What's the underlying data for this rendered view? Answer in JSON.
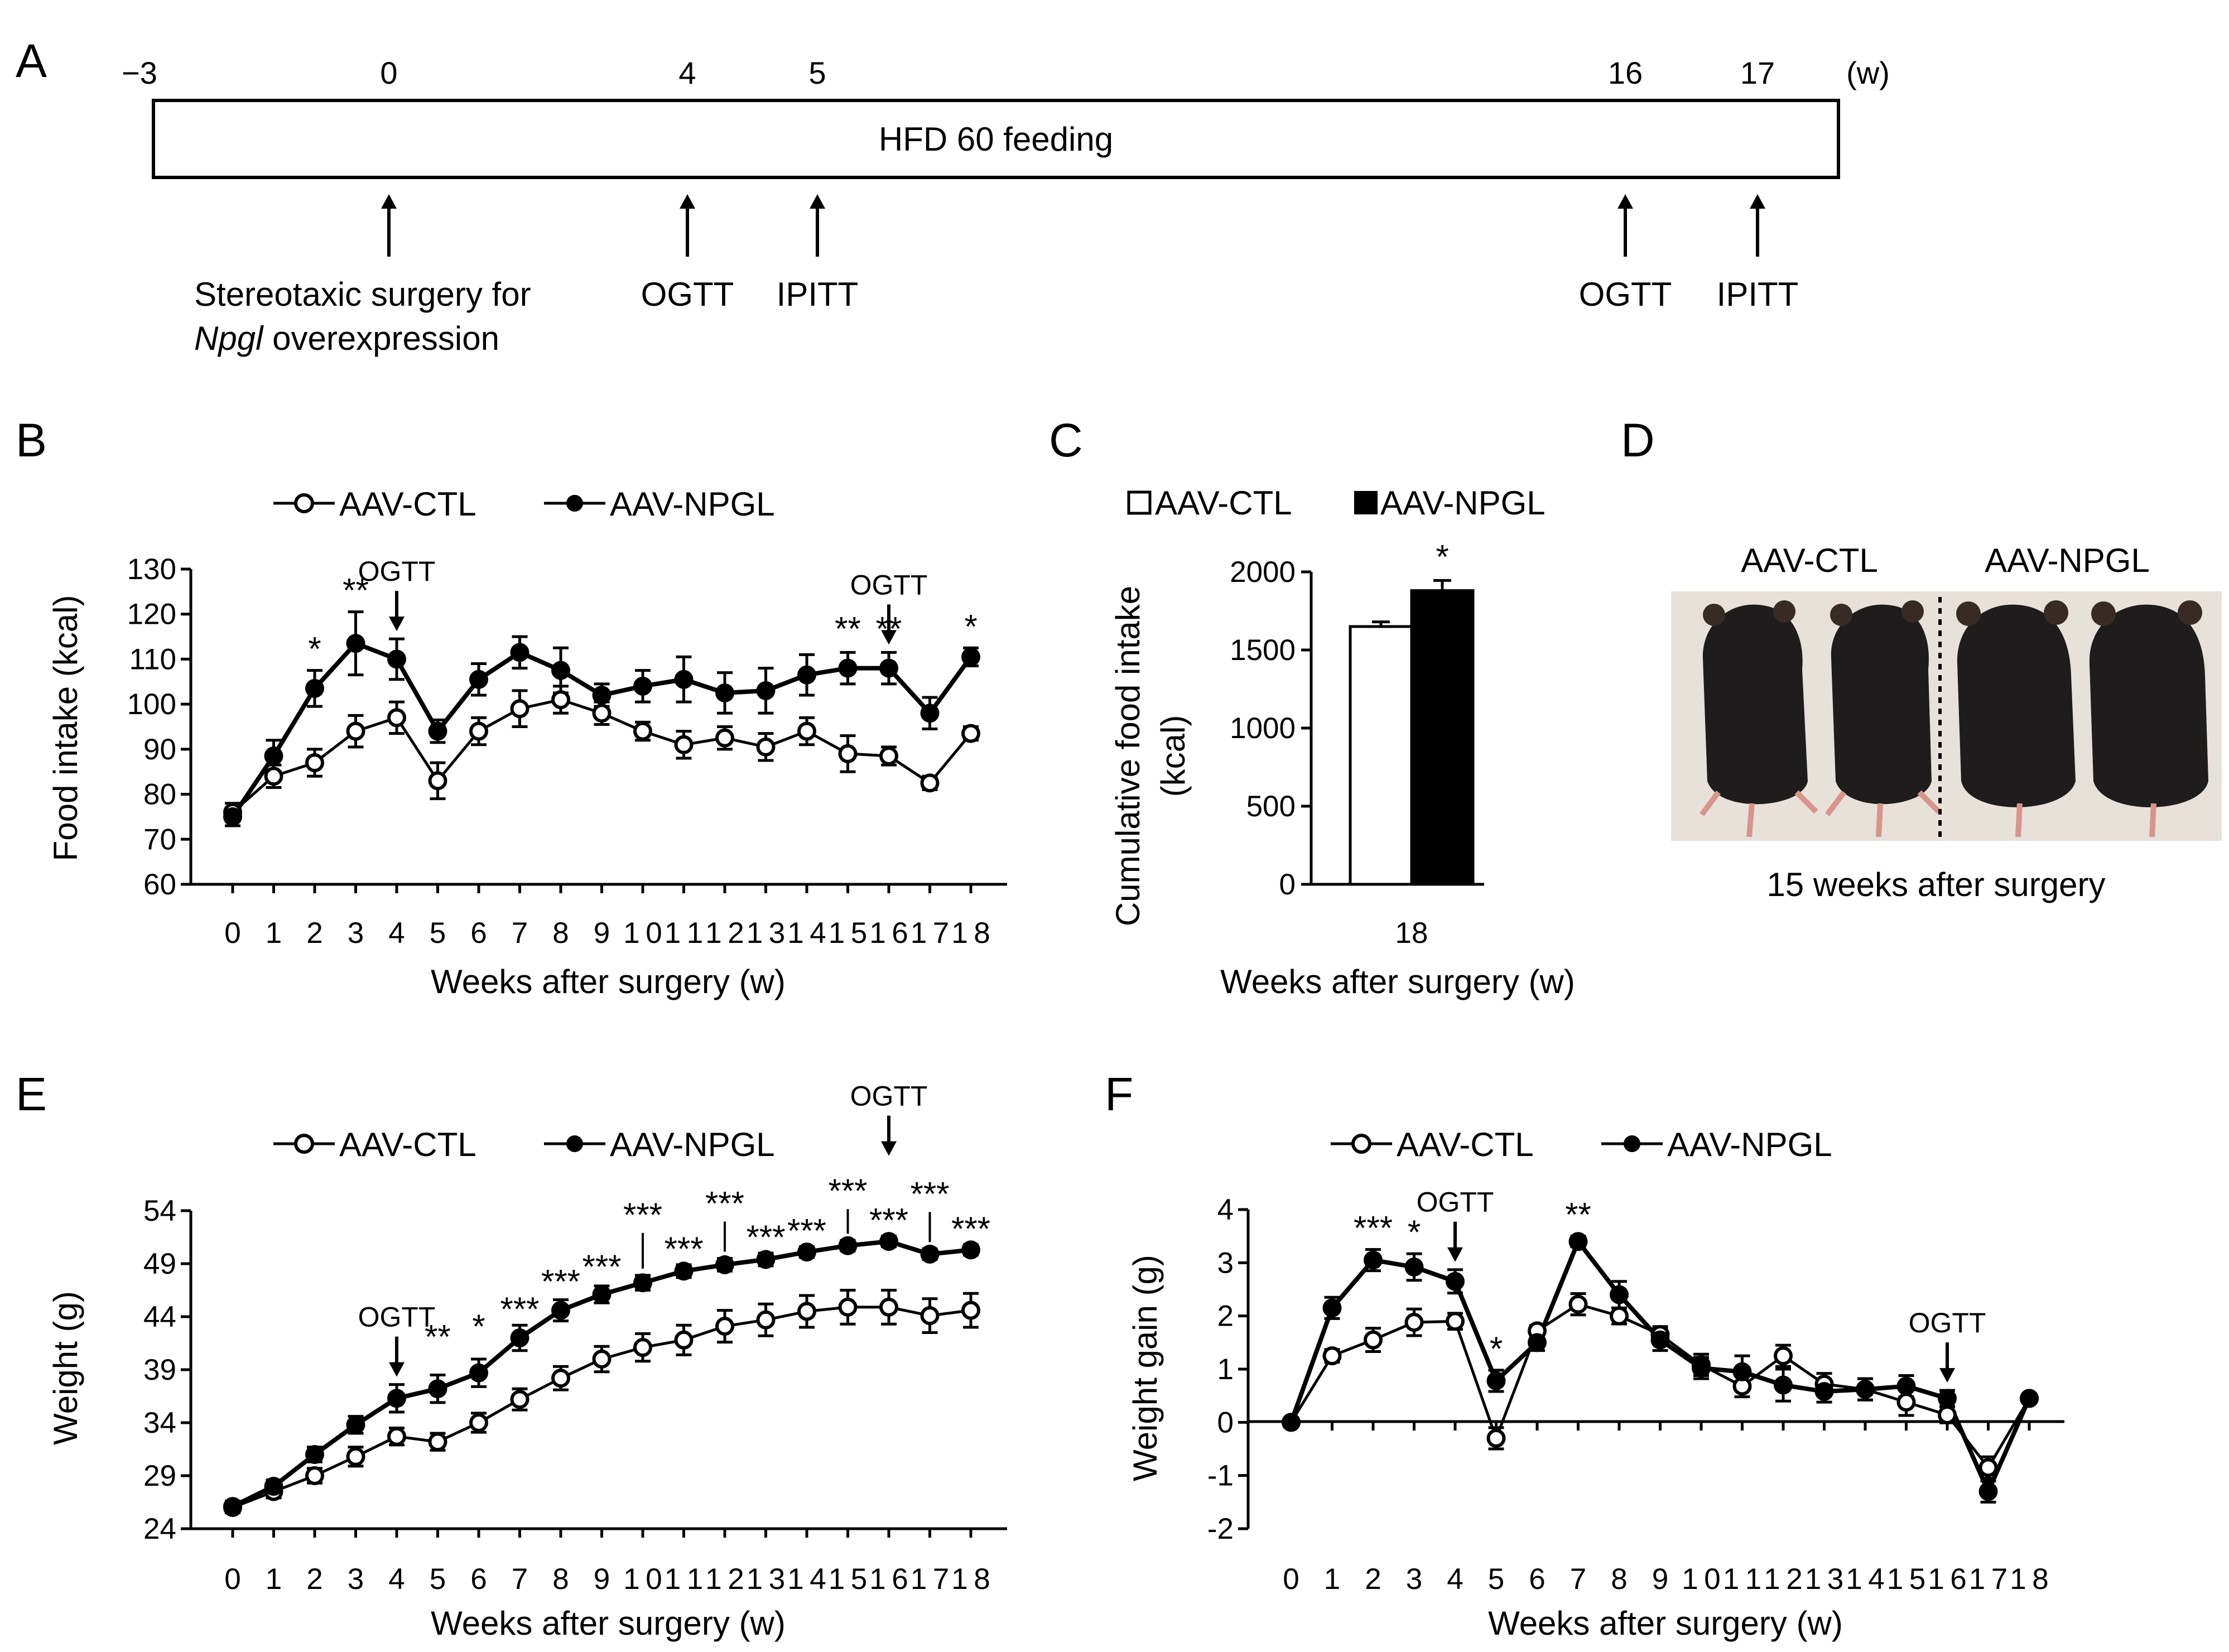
{
  "panel_labels": [
    "A",
    "B",
    "C",
    "D",
    "E",
    "F"
  ],
  "timeline": {
    "ticks": [
      "−3",
      "0",
      "4",
      "5",
      "16",
      "17"
    ],
    "unit": "(w)",
    "bar_label": "HFD 60 feeding",
    "events": [
      {
        "label": "Stereotaxic surgery for",
        "label2": "Npgl",
        "label3": " overexpression"
      },
      {
        "label": "OGTT"
      },
      {
        "label": "IPITT"
      },
      {
        "label": "OGTT"
      },
      {
        "label": "IPITT"
      }
    ]
  },
  "colors": {
    "ctl_fill": "#ffffff",
    "npgl_fill": "#000000",
    "line": "#000000",
    "text": "#000000"
  },
  "chart_data": [
    {
      "id": "B",
      "type": "line",
      "title": "",
      "legend": [
        "AAV-CTL",
        "AAV-NPGL"
      ],
      "xlabel": "Weeks after surgery (w)",
      "ylabel": "Food intake (kcal)",
      "ylim": [
        60,
        130
      ],
      "yticks": [
        60,
        70,
        80,
        90,
        100,
        110,
        120,
        130
      ],
      "categories": [
        "0",
        "1",
        "2",
        "3",
        "4",
        "5",
        "6",
        "7",
        "8",
        "9",
        "10",
        "11",
        "12",
        "13",
        "14",
        "15",
        "16",
        "17",
        "18"
      ],
      "series": [
        {
          "name": "AAV-CTL",
          "values": [
            76,
            84,
            87,
            94,
            97,
            83,
            94,
            99,
            101,
            98,
            94,
            91,
            92.5,
            90.5,
            94,
            89,
            88.5,
            82.5,
            93.5
          ],
          "errors": [
            2,
            2.5,
            3,
            3.5,
            3.5,
            4,
            3,
            4,
            3,
            2.5,
            2,
            3,
            2.5,
            3,
            3,
            4,
            2,
            1.5,
            1.5
          ]
        },
        {
          "name": "AAV-NPGL",
          "values": [
            75,
            88.5,
            103.5,
            113.5,
            110,
            94,
            105.5,
            111.5,
            107.5,
            102,
            104,
            105.5,
            102.5,
            103,
            106.5,
            108,
            108,
            98,
            110.5
          ],
          "errors": [
            2,
            3.5,
            4,
            7,
            4.5,
            2.5,
            3.5,
            3.5,
            5,
            2.5,
            3.5,
            5,
            4.5,
            5,
            4.5,
            3.5,
            3.5,
            3.5,
            2
          ]
        }
      ],
      "significance": [
        {
          "x": "2",
          "text": "*"
        },
        {
          "x": "3",
          "text": "**"
        },
        {
          "x": "15",
          "text": "**"
        },
        {
          "x": "16",
          "text": "**"
        },
        {
          "x": "18",
          "text": "*"
        }
      ],
      "annotations": [
        {
          "x": "4",
          "text": "OGTT"
        },
        {
          "x": "16",
          "text": "OGTT"
        }
      ]
    },
    {
      "id": "C",
      "type": "bar",
      "title": "",
      "legend": [
        "AAV-CTL",
        "AAV-NPGL"
      ],
      "categories": [
        "18"
      ],
      "xlabel": "Weeks after surgery (w)",
      "ylabel_line1": "Cumulative food intake",
      "ylabel_line2": "(kcal)",
      "ylim": [
        0,
        2000
      ],
      "yticks": [
        0,
        500,
        1000,
        1500,
        2000
      ],
      "series": [
        {
          "name": "AAV-CTL",
          "values": [
            1650
          ],
          "errors": [
            30
          ]
        },
        {
          "name": "AAV-NPGL",
          "values": [
            1880
          ],
          "errors": [
            65
          ]
        }
      ],
      "significance": [
        {
          "series": "AAV-NPGL",
          "text": "*"
        }
      ]
    },
    {
      "id": "E",
      "type": "line",
      "title": "",
      "legend": [
        "AAV-CTL",
        "AAV-NPGL"
      ],
      "xlabel": "Weeks after surgery (w)",
      "ylabel": "Weight (g)",
      "ylim": [
        24,
        54
      ],
      "yticks": [
        24,
        29,
        34,
        39,
        44,
        49,
        54
      ],
      "categories": [
        "0",
        "1",
        "2",
        "3",
        "4",
        "5",
        "6",
        "7",
        "8",
        "9",
        "10",
        "11",
        "12",
        "13",
        "14",
        "15",
        "16",
        "17",
        "18"
      ],
      "series": [
        {
          "name": "AAV-CTL",
          "values": [
            26,
            27.5,
            29,
            30.8,
            32.7,
            32.2,
            34,
            36.2,
            38.2,
            40,
            41.1,
            41.8,
            43.1,
            43.7,
            44.5,
            44.9,
            44.9,
            44.1,
            44.6
          ],
          "errors": [
            0.5,
            0.6,
            0.7,
            0.9,
            0.8,
            0.8,
            0.9,
            1,
            1.1,
            1.2,
            1.3,
            1.4,
            1.5,
            1.5,
            1.5,
            1.6,
            1.6,
            1.6,
            1.6
          ]
        },
        {
          "name": "AAV-NPGL",
          "values": [
            26.1,
            28,
            31,
            33.8,
            36.3,
            37.2,
            38.7,
            42,
            44.6,
            46.1,
            47.2,
            48.3,
            48.9,
            49.4,
            50.1,
            50.7,
            51.1,
            49.9,
            50.3
          ],
          "errors": [
            0.5,
            0.6,
            0.7,
            0.8,
            1.3,
            1.3,
            1.3,
            1.2,
            1,
            0.8,
            0.7,
            0.6,
            0.6,
            0.6,
            0.5,
            0.5,
            0.5,
            0.5,
            0.5
          ]
        }
      ],
      "significance": [
        {
          "x": "5",
          "text": "**"
        },
        {
          "x": "6",
          "text": "*"
        },
        {
          "x": "7",
          "text": "***"
        },
        {
          "x": "8",
          "text": "***"
        },
        {
          "x": "9",
          "text": "***"
        },
        {
          "x": "10",
          "text": "***"
        },
        {
          "x": "11",
          "text": "***"
        },
        {
          "x": "12",
          "text": "***"
        },
        {
          "x": "13",
          "text": "***"
        },
        {
          "x": "14",
          "text": "***"
        },
        {
          "x": "15",
          "text": "***"
        },
        {
          "x": "16",
          "text": "***"
        },
        {
          "x": "17",
          "text": "***"
        },
        {
          "x": "18",
          "text": "***"
        }
      ],
      "annotations": [
        {
          "x": "4",
          "text": "OGTT"
        },
        {
          "x": "16",
          "text": "OGTT"
        }
      ]
    },
    {
      "id": "F",
      "type": "line",
      "title": "",
      "legend": [
        "AAV-CTL",
        "AAV-NPGL"
      ],
      "xlabel": "Weeks after surgery (w)",
      "ylabel": "Weight gain (g)",
      "ylim": [
        -2,
        4
      ],
      "yticks": [
        -2,
        -1,
        0,
        1,
        2,
        3,
        4
      ],
      "categories": [
        "0",
        "1",
        "2",
        "3",
        "4",
        "5",
        "6",
        "7",
        "8",
        "9",
        "10",
        "11",
        "12",
        "13",
        "14",
        "15",
        "16",
        "17",
        "18"
      ],
      "series": [
        {
          "name": "AAV-CTL",
          "values": [
            0,
            1.25,
            1.55,
            1.88,
            1.9,
            -0.3,
            1.72,
            2.22,
            2.0,
            1.65,
            1.08,
            0.68,
            1.25,
            0.72,
            0.62,
            0.38,
            0.14,
            -0.85,
            0.45
          ],
          "errors": [
            0,
            0.12,
            0.22,
            0.25,
            0.15,
            0.2,
            0.1,
            0.2,
            0.15,
            0.15,
            0.2,
            0.2,
            0.2,
            0.2,
            0.2,
            0.25,
            0.15,
            0.2,
            0.05
          ]
        },
        {
          "name": "AAV-NPGL",
          "values": [
            0,
            2.15,
            3.05,
            2.92,
            2.65,
            0.78,
            1.5,
            3.4,
            2.4,
            1.55,
            1.02,
            0.95,
            0.7,
            0.58,
            0.62,
            0.68,
            0.45,
            -1.3,
            0.45
          ],
          "errors": [
            0,
            0.2,
            0.2,
            0.25,
            0.22,
            0.2,
            0.15,
            0.1,
            0.25,
            0.2,
            0.2,
            0.3,
            0.3,
            0.2,
            0.2,
            0.2,
            0.15,
            0.2,
            0.05
          ]
        }
      ],
      "significance": [
        {
          "x": "2",
          "text": "***"
        },
        {
          "x": "3",
          "text": "*"
        },
        {
          "x": "5",
          "text": "*"
        },
        {
          "x": "7",
          "text": "**"
        }
      ],
      "annotations": [
        {
          "x": "4",
          "text": "OGTT"
        },
        {
          "x": "16",
          "text": "OGTT"
        }
      ]
    }
  ],
  "panel_d": {
    "labels": [
      "AAV-CTL",
      "AAV-NPGL"
    ],
    "caption": "15 weeks after surgery"
  }
}
